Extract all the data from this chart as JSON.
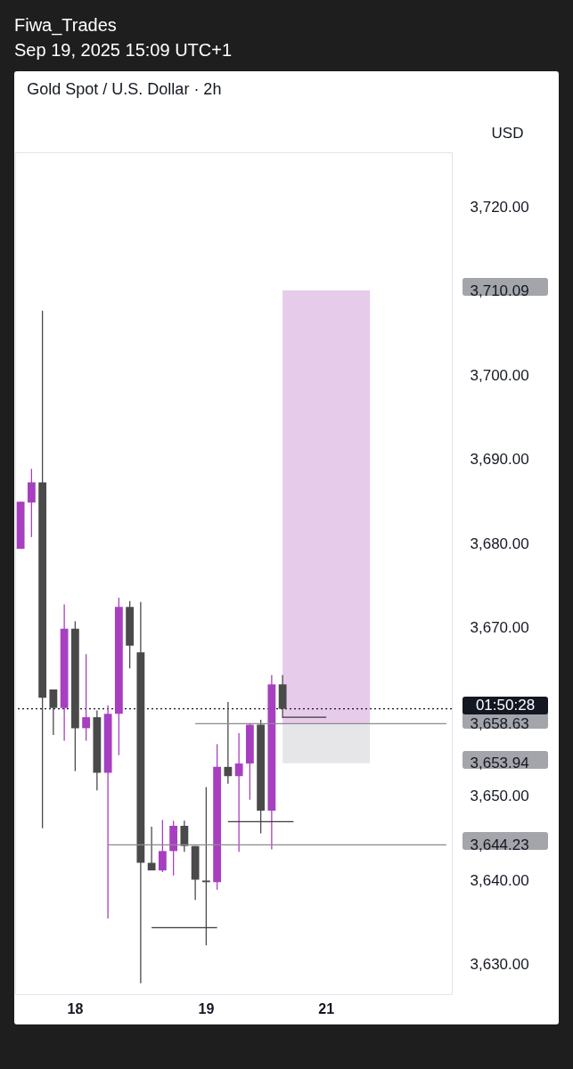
{
  "chart_data": {
    "type": "candlestick",
    "title": "Gold Spot / U.S. Dollar · 2h",
    "ylabel": "USD",
    "subtitle": "Sep 19, 2025 15:09 UTC+1",
    "annotations": [
      "Fiwa_Trades",
      "01:50:28"
    ],
    "categories": [
      null,
      null,
      null,
      null,
      null,
      "18",
      null,
      null,
      null,
      null,
      null,
      null,
      null,
      null,
      null,
      null,
      null,
      "19",
      null,
      null,
      null,
      null,
      null,
      null,
      null,
      null,
      null,
      null,
      "21",
      null,
      null,
      null,
      null,
      null,
      null,
      null,
      null,
      null,
      null,
      null
    ],
    "ohlc": [
      [
        3679.4,
        3685.0,
        3679.4,
        3685.0
      ],
      [
        3684.9,
        3688.9,
        3680.8,
        3687.3
      ],
      [
        3687.3,
        3707.7,
        3646.2,
        3661.7
      ],
      [
        3662.7,
        3662.7,
        3657.3,
        3660.5
      ],
      [
        3660.5,
        3672.8,
        3656.6,
        3669.9
      ],
      [
        3669.9,
        3670.8,
        3653.0,
        3658.1
      ],
      [
        3658.1,
        3666.9,
        3656.6,
        3659.4
      ],
      [
        3659.4,
        3660.2,
        3650.7,
        3652.8
      ],
      [
        3652.8,
        3660.8,
        3635.5,
        3659.8
      ],
      [
        3659.8,
        3673.6,
        3654.9,
        3672.5
      ],
      [
        3672.5,
        3673.2,
        3665.2,
        3667.9
      ],
      [
        3667.1,
        3673.1,
        3627.8,
        3642.1
      ],
      [
        3642.1,
        3646.4,
        3641.2,
        3641.2
      ],
      [
        3641.2,
        3647.2,
        3641.0,
        3643.5
      ],
      [
        3643.5,
        3647.1,
        3640.6,
        3646.5
      ],
      [
        3646.5,
        3647.1,
        3643.4,
        3644.1
      ],
      [
        3644.1,
        3644.1,
        3637.7,
        3640.1
      ],
      [
        3640.0,
        3651.1,
        3632.3,
        3639.8
      ],
      [
        3639.8,
        3656.2,
        3638.9,
        3653.5
      ],
      [
        3653.5,
        3661.2,
        3651.5,
        3652.4
      ],
      [
        3652.4,
        3657.5,
        3643.4,
        3653.9
      ],
      [
        3653.9,
        3658.7,
        3649.6,
        3658.5
      ],
      [
        3658.5,
        3659.1,
        3645.6,
        3648.3
      ],
      [
        3648.3,
        3664.4,
        3643.7,
        3663.3
      ],
      [
        3663.3,
        3664.4,
        3659.3,
        3660.4
      ],
      null,
      null,
      null,
      null,
      null,
      null,
      null,
      null,
      null,
      null,
      null,
      null,
      null,
      null,
      null
    ],
    "colors": [
      "#a73fc0",
      "#a73fc0",
      "#4a4a4a",
      "#4a4a4a",
      "#a73fc0",
      "#4a4a4a",
      "#a73fc0",
      "#4a4a4a",
      "#a73fc0",
      "#a73fc0",
      "#4a4a4a",
      "#4a4a4a",
      "#4a4a4a",
      "#a73fc0",
      "#a73fc0",
      "#4a4a4a",
      "#4a4a4a",
      "#4a4a4a",
      "#a73fc0",
      "#4a4a4a",
      "#a73fc0",
      "#a73fc0",
      "#4a4a4a",
      "#a73fc0",
      "#4a4a4a",
      null,
      null,
      null,
      null,
      null,
      null,
      null,
      null,
      null,
      null,
      null,
      null,
      null,
      null,
      null
    ],
    "series": [
      {
        "type": "area",
        "color": "#e6cbeb",
        "values": [
          null,
          null,
          null,
          null,
          null,
          null,
          null,
          null,
          null,
          null,
          null,
          null,
          null,
          null,
          null,
          null,
          null,
          null,
          null,
          null,
          null,
          null,
          null,
          null,
          null,
          null,
          null,
          null,
          null,
          null,
          null,
          null,
          null,
          null,
          null,
          null,
          null,
          null,
          null,
          null
        ],
        "upper": [
          null,
          null,
          null,
          null,
          null,
          null,
          null,
          null,
          null,
          null,
          null,
          null,
          null,
          null,
          null,
          null,
          null,
          null,
          null,
          null,
          null,
          null,
          null,
          null,
          3710.09,
          3710.09,
          3710.09,
          3710.09,
          3710.09,
          3710.09,
          3710.09,
          3710.09,
          3710.09,
          null,
          null,
          null,
          null,
          null,
          null,
          null
        ],
        "lower": [
          null,
          null,
          null,
          null,
          null,
          null,
          null,
          null,
          null,
          null,
          null,
          null,
          null,
          null,
          null,
          null,
          null,
          null,
          null,
          null,
          null,
          null,
          null,
          null,
          3658.63,
          3658.63,
          3658.63,
          3658.63,
          3658.63,
          3658.63,
          3658.63,
          3658.63,
          3658.63,
          null,
          null,
          null,
          null,
          null,
          null,
          null
        ]
      },
      {
        "type": "area",
        "color": "#e6e6e8",
        "values": [
          null,
          null,
          null,
          null,
          null,
          null,
          null,
          null,
          null,
          null,
          null,
          null,
          null,
          null,
          null,
          null,
          null,
          null,
          null,
          null,
          null,
          null,
          null,
          null,
          null,
          null,
          null,
          null,
          null,
          null,
          null,
          null,
          null,
          null,
          null,
          null,
          null,
          null,
          null,
          null
        ],
        "upper": [
          null,
          null,
          null,
          null,
          null,
          null,
          null,
          null,
          null,
          null,
          null,
          null,
          null,
          null,
          null,
          null,
          null,
          null,
          null,
          null,
          null,
          null,
          null,
          null,
          3658.63,
          3658.63,
          3658.63,
          3658.63,
          3658.63,
          3658.63,
          3658.63,
          3658.63,
          3658.63,
          null,
          null,
          null,
          null,
          null,
          null,
          null
        ],
        "lower": [
          null,
          null,
          null,
          null,
          null,
          null,
          null,
          null,
          null,
          null,
          null,
          null,
          null,
          null,
          null,
          null,
          null,
          null,
          null,
          null,
          null,
          null,
          null,
          null,
          3653.94,
          3653.94,
          3653.94,
          3653.94,
          3653.94,
          3653.94,
          3653.94,
          3653.94,
          3653.94,
          null,
          null,
          null,
          null,
          null,
          null,
          null
        ]
      },
      {
        "type": "line",
        "color": "#8a8a8a",
        "values": [
          null,
          null,
          null,
          null,
          null,
          null,
          null,
          null,
          null,
          null,
          null,
          null,
          null,
          null,
          null,
          null,
          3658.63,
          3658.63,
          3658.63,
          3658.63,
          3658.63,
          3658.63,
          3658.63,
          3658.63,
          3658.63,
          3658.63,
          3658.63,
          3658.63,
          3658.63,
          3658.63,
          3658.63,
          3658.63,
          3658.63,
          3658.63,
          3658.63,
          3658.63,
          3658.63,
          3658.63,
          3658.63,
          3658.63
        ]
      },
      {
        "type": "line",
        "color": "#8a8a8a",
        "values": [
          null,
          null,
          null,
          null,
          null,
          null,
          null,
          null,
          3644.23,
          3644.23,
          3644.23,
          3644.23,
          3644.23,
          3644.23,
          3644.23,
          3644.23,
          3644.23,
          3644.23,
          3644.23,
          3644.23,
          3644.23,
          3644.23,
          3644.23,
          3644.23,
          3644.23,
          3644.23,
          3644.23,
          3644.23,
          3644.23,
          3644.23,
          3644.23,
          3644.23,
          3644.23,
          3644.23,
          3644.23,
          3644.23,
          3644.23,
          3644.23,
          3644.23,
          3644.23
        ]
      },
      {
        "type": "line",
        "color": "#3a3a3a",
        "values": [
          null,
          null,
          null,
          null,
          null,
          null,
          null,
          null,
          null,
          null,
          null,
          null,
          3634.4,
          3634.4,
          3634.4,
          3634.4,
          3634.4,
          3634.4,
          3634.4,
          null,
          null,
          null,
          null,
          null,
          null,
          null,
          null,
          null,
          null,
          null,
          null,
          null,
          null,
          null,
          null,
          null,
          null,
          null,
          null,
          null
        ]
      },
      {
        "type": "line",
        "color": "#3a3a3a",
        "values": [
          null,
          null,
          null,
          null,
          null,
          null,
          null,
          null,
          null,
          null,
          null,
          null,
          null,
          null,
          null,
          null,
          null,
          null,
          null,
          3647.0,
          3647.0,
          3647.0,
          3647.0,
          3647.0,
          3647.0,
          3647.0,
          null,
          null,
          null,
          null,
          null,
          null,
          null,
          null,
          null,
          null,
          null,
          null,
          null,
          null
        ]
      },
      {
        "type": "line",
        "color": "#3a3a3a",
        "values": [
          null,
          null,
          null,
          null,
          null,
          null,
          null,
          null,
          null,
          null,
          null,
          null,
          null,
          null,
          null,
          null,
          null,
          null,
          null,
          null,
          null,
          null,
          null,
          null,
          3659.4,
          3659.4,
          3659.4,
          3659.4,
          3659.4,
          null,
          null,
          null,
          null,
          null,
          null,
          null,
          null,
          null,
          null,
          null
        ]
      }
    ],
    "ref_lines": [
      {
        "axis": "y",
        "value": 3660.4,
        "color": "#131722",
        "line_style": "dotted"
      }
    ],
    "ylim": [
      3626.5,
      3726.5
    ],
    "yticks": [
      {
        "value": 3630,
        "label": "3,630.00"
      },
      {
        "value": 3640,
        "label": "3,640.00"
      },
      {
        "value": 3644.23,
        "label": "3,644.23"
      },
      {
        "value": 3650,
        "label": "3,650.00"
      },
      {
        "value": 3653.94,
        "label": "3,653.94"
      },
      {
        "value": 3658.63,
        "label": "3,658.63"
      },
      {
        "value": 3670,
        "label": "3,670.00"
      },
      {
        "value": 3680,
        "label": "3,680.00"
      },
      {
        "value": 3690,
        "label": "3,690.00"
      },
      {
        "value": 3700,
        "label": "3,700.00"
      },
      {
        "value": 3710.09,
        "label": "3,710.09"
      },
      {
        "value": 3720,
        "label": "3,720.00"
      }
    ]
  }
}
